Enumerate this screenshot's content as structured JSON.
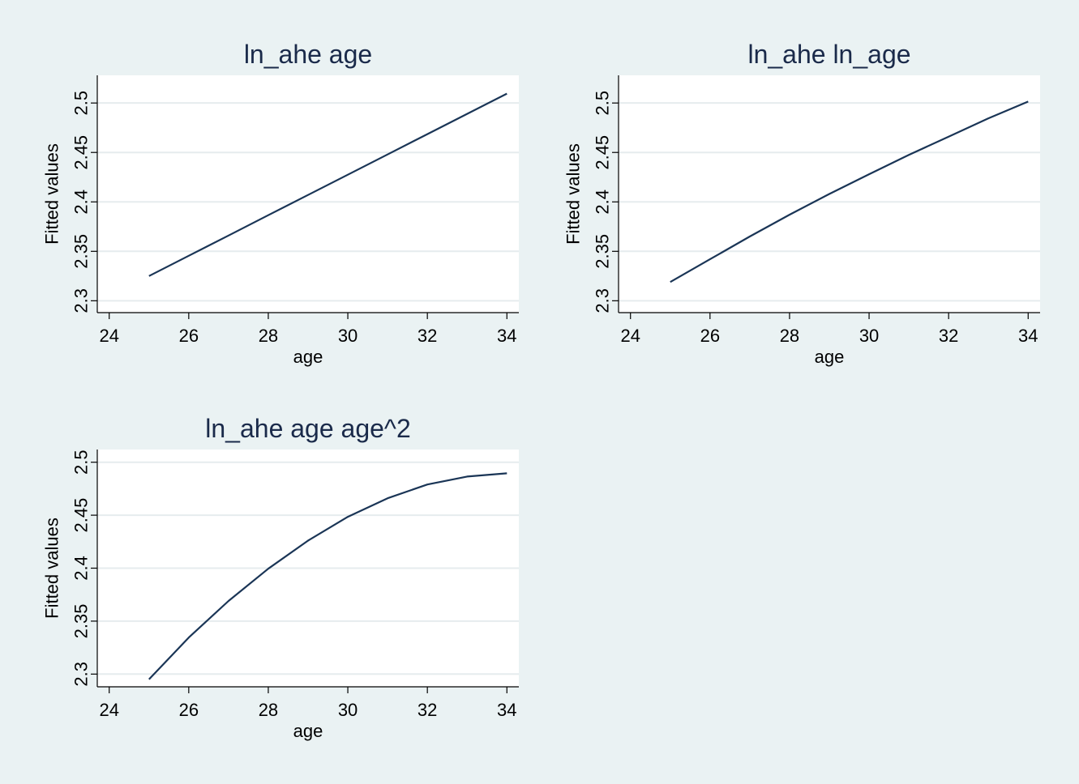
{
  "chart_data": [
    {
      "type": "line",
      "title": "ln_ahe age",
      "xlabel": "age",
      "ylabel": "Fitted values",
      "xlim": [
        23.7,
        34.3
      ],
      "ylim": [
        2.288,
        2.528
      ],
      "xticks": [
        "24",
        "26",
        "28",
        "30",
        "32",
        "34"
      ],
      "yticks": [
        "2.3",
        "2.35",
        "2.4",
        "2.45",
        "2.5"
      ],
      "grid": true,
      "x": [
        25,
        26,
        27,
        28,
        29,
        30,
        31,
        32,
        33,
        34
      ],
      "series": [
        {
          "values": [
            2.325,
            2.3455,
            2.366,
            2.3865,
            2.407,
            2.4275,
            2.448,
            2.4685,
            2.489,
            2.5095
          ]
        }
      ]
    },
    {
      "type": "line",
      "title": "ln_ahe ln_age",
      "xlabel": "age",
      "ylabel": "Fitted values",
      "xlim": [
        23.7,
        34.3
      ],
      "ylim": [
        2.288,
        2.528
      ],
      "xticks": [
        "24",
        "26",
        "28",
        "30",
        "32",
        "34"
      ],
      "yticks": [
        "2.3",
        "2.35",
        "2.4",
        "2.45",
        "2.5"
      ],
      "grid": true,
      "x": [
        25,
        26,
        27,
        28,
        29,
        30,
        31,
        32,
        33,
        34
      ],
      "series": [
        {
          "values": [
            2.319,
            2.342,
            2.365,
            2.387,
            2.408,
            2.428,
            2.4475,
            2.466,
            2.4845,
            2.5015
          ]
        }
      ]
    },
    {
      "type": "line",
      "title": "ln_ahe age age^2",
      "xlabel": "age",
      "ylabel": "Fitted values",
      "xlim": [
        23.7,
        34.3
      ],
      "ylim": [
        2.288,
        2.512
      ],
      "xticks": [
        "24",
        "26",
        "28",
        "30",
        "32",
        "34"
      ],
      "yticks": [
        "2.3",
        "2.35",
        "2.4",
        "2.45",
        "2.5"
      ],
      "grid": true,
      "x": [
        25,
        26,
        27,
        28,
        29,
        30,
        31,
        32,
        33,
        34
      ],
      "series": [
        {
          "values": [
            2.295,
            2.3345,
            2.369,
            2.3995,
            2.426,
            2.4485,
            2.466,
            2.479,
            2.4865,
            2.4895
          ]
        }
      ]
    }
  ]
}
